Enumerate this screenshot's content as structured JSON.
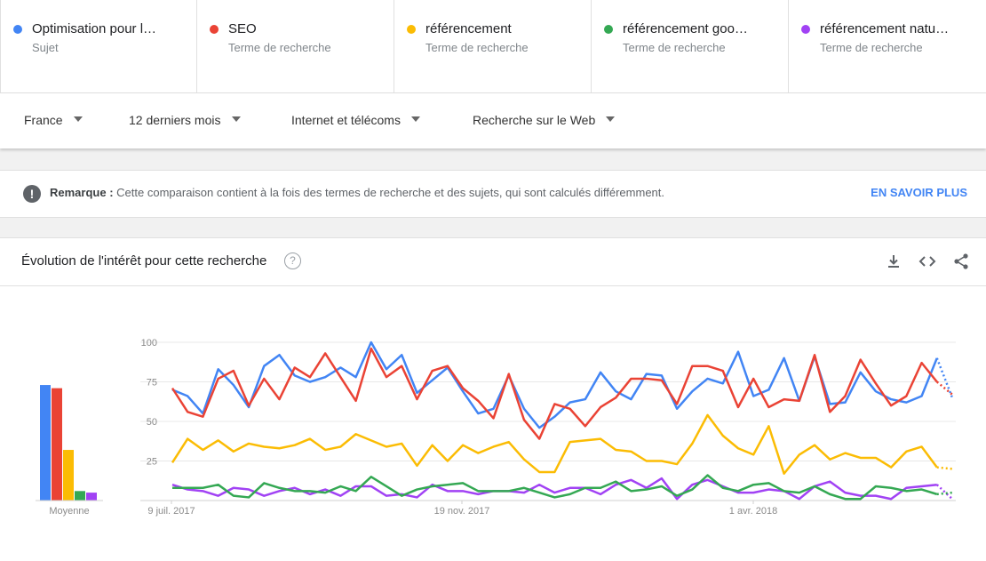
{
  "terms": [
    {
      "name": "Optimisation pour l…",
      "type": "Sujet",
      "color": "#4285f4"
    },
    {
      "name": "SEO",
      "type": "Terme de recherche",
      "color": "#ea4335"
    },
    {
      "name": "référencement",
      "type": "Terme de recherche",
      "color": "#fbbc04"
    },
    {
      "name": "référencement goo…",
      "type": "Terme de recherche",
      "color": "#34a853"
    },
    {
      "name": "référencement natu…",
      "type": "Terme de recherche",
      "color": "#a142f4"
    }
  ],
  "filters": {
    "region": "France",
    "period": "12 derniers mois",
    "category": "Internet et télécoms",
    "search_type": "Recherche sur le Web"
  },
  "note": {
    "label": "Remarque :",
    "text": "Cette comparaison contient à la fois des termes de recherche et des sujets, qui sont calculés différemment.",
    "link": "EN SAVOIR PLUS"
  },
  "card": {
    "title": "Évolution de l'intérêt pour cette recherche",
    "help_symbol": "?",
    "icons": [
      "download-icon",
      "embed-icon",
      "share-icon"
    ]
  },
  "chart_data": {
    "type": "line",
    "title": "",
    "ylim": [
      0,
      100
    ],
    "yticks": [
      100,
      75,
      50,
      25
    ],
    "xtick_labels": [
      "9 juil. 2017",
      "19 nov. 2017",
      "1 avr. 2018"
    ],
    "average_label": "Moyenne",
    "averages": [
      73,
      71,
      32,
      6,
      5
    ],
    "series": [
      {
        "name": "Optimisation pour l…",
        "color": "#4285f4",
        "values": [
          70,
          66,
          55,
          83,
          73,
          59,
          85,
          92,
          79,
          75,
          78,
          84,
          78,
          100,
          83,
          92,
          68,
          76,
          84,
          69,
          55,
          58,
          79,
          58,
          46,
          53,
          62,
          64,
          81,
          69,
          64,
          80,
          79,
          58,
          69,
          77,
          74,
          94,
          66,
          70,
          90,
          63,
          91,
          61,
          62,
          81,
          69,
          64,
          62,
          66,
          90,
          65
        ]
      },
      {
        "name": "SEO",
        "color": "#ea4335",
        "values": [
          71,
          56,
          53,
          77,
          82,
          60,
          77,
          64,
          84,
          78,
          93,
          78,
          63,
          96,
          78,
          85,
          64,
          82,
          85,
          71,
          63,
          52,
          80,
          51,
          39,
          61,
          58,
          47,
          59,
          65,
          77,
          77,
          76,
          61,
          85,
          85,
          82,
          59,
          77,
          59,
          64,
          63,
          92,
          56,
          66,
          89,
          74,
          60,
          66,
          87,
          75,
          67
        ]
      },
      {
        "name": "référencement",
        "color": "#fbbc04",
        "values": [
          24,
          39,
          32,
          38,
          31,
          36,
          34,
          33,
          35,
          39,
          32,
          34,
          42,
          38,
          34,
          36,
          22,
          35,
          25,
          35,
          30,
          34,
          37,
          26,
          18,
          18,
          37,
          38,
          39,
          32,
          31,
          25,
          25,
          23,
          36,
          54,
          41,
          33,
          29,
          47,
          17,
          29,
          35,
          26,
          30,
          27,
          27,
          21,
          31,
          34,
          21,
          20
        ]
      },
      {
        "name": "référencement goo…",
        "color": "#34a853",
        "values": [
          8,
          8,
          8,
          10,
          3,
          2,
          11,
          8,
          6,
          6,
          5,
          9,
          6,
          15,
          9,
          3,
          7,
          9,
          10,
          11,
          6,
          6,
          6,
          8,
          5,
          2,
          4,
          8,
          8,
          12,
          6,
          7,
          9,
          3,
          7,
          16,
          8,
          6,
          10,
          11,
          6,
          5,
          9,
          4,
          1,
          1,
          9,
          8,
          6,
          7,
          4,
          5
        ]
      },
      {
        "name": "référencement natu…",
        "color": "#a142f4",
        "values": [
          10,
          7,
          6,
          3,
          8,
          7,
          3,
          6,
          8,
          4,
          7,
          3,
          9,
          9,
          3,
          4,
          2,
          10,
          6,
          6,
          4,
          6,
          6,
          5,
          10,
          5,
          8,
          8,
          4,
          10,
          13,
          8,
          14,
          1,
          10,
          13,
          9,
          5,
          5,
          7,
          6,
          1,
          9,
          12,
          5,
          3,
          3,
          1,
          8,
          9,
          10,
          1
        ]
      }
    ]
  }
}
